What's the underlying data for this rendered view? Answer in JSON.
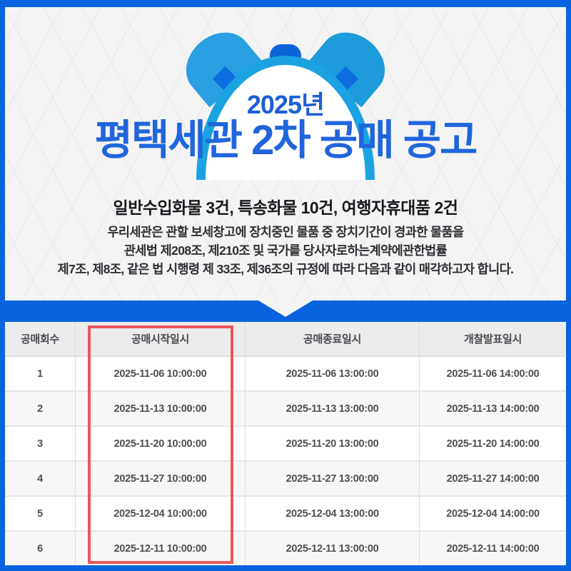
{
  "poster": {
    "year_badge": "2025년",
    "title": "평택세관 2차 공매 공고",
    "subtitle": "일반수입화물 3건, 특송화물 10건, 여행자휴대품 2건",
    "description_lines": [
      "우리세관은 관할 보세창고에 장치중인 물품 중 장치기간이 경과한 물품을",
      "관세법 제208조, 제210조 및 국가를 당사자로하는계약에관한법률",
      "제7조, 제8조, 같은 법 시행령 제 33조, 제36조의 규정에 따라 다음과 같이 매각하고자 합니다."
    ]
  },
  "schedule_table": {
    "columns": [
      "공매회수",
      "공매시작일시",
      "공매종료일시",
      "개찰발표일시"
    ],
    "highlighted_column": "공매시작일시",
    "rows": [
      [
        "1",
        "2025-11-06 10:00:00",
        "2025-11-06 13:00:00",
        "2025-11-06 14:00:00"
      ],
      [
        "2",
        "2025-11-13 10:00:00",
        "2025-11-13 13:00:00",
        "2025-11-13 14:00:00"
      ],
      [
        "3",
        "2025-11-20 10:00:00",
        "2025-11-20 13:00:00",
        "2025-11-20 14:00:00"
      ],
      [
        "4",
        "2025-11-27 10:00:00",
        "2025-11-27 13:00:00",
        "2025-11-27 14:00:00"
      ],
      [
        "5",
        "2025-12-04 10:00:00",
        "2025-12-04 13:00:00",
        "2025-12-04 14:00:00"
      ],
      [
        "6",
        "2025-12-11 10:00:00",
        "2025-12-11 13:00:00",
        "2025-12-11 14:00:00"
      ]
    ]
  },
  "colors": {
    "frame_blue": "#0a63de",
    "title_blue": "#2065db",
    "clock_ring_cyan": "#1ba3e1",
    "bell_cyan_left": "#2a9fe2",
    "bell_cyan_right": "#1d9bdb",
    "clock_accent_blue": "#0c6ce0",
    "highlight_red": "#e9565b",
    "band_blue": "#0a63de"
  },
  "icons": {
    "alarm_clock": "alarm-clock-icon"
  }
}
